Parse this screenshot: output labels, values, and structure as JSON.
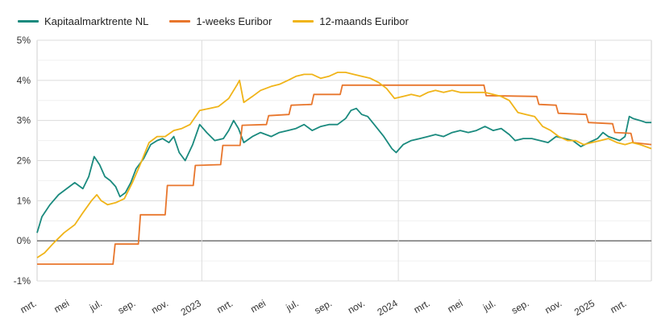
{
  "chart_data": {
    "type": "line",
    "title": "",
    "xlabel": "",
    "ylabel": "",
    "x_start": "2022-03-01",
    "x_end": "2025-04-15",
    "ylim": [
      -1,
      5
    ],
    "yticks": [
      "-1%",
      "0%",
      "1%",
      "2%",
      "3%",
      "4%",
      "5%"
    ],
    "xticks": [
      {
        "date": "2022-03-01",
        "label": "mrt."
      },
      {
        "date": "2022-05-01",
        "label": "mei"
      },
      {
        "date": "2022-07-01",
        "label": "jul."
      },
      {
        "date": "2022-09-01",
        "label": "sep."
      },
      {
        "date": "2022-11-01",
        "label": "nov."
      },
      {
        "date": "2023-01-01",
        "label": "2023"
      },
      {
        "date": "2023-03-01",
        "label": "mrt."
      },
      {
        "date": "2023-05-01",
        "label": "mei"
      },
      {
        "date": "2023-07-01",
        "label": "jul."
      },
      {
        "date": "2023-09-01",
        "label": "sep."
      },
      {
        "date": "2023-11-01",
        "label": "nov."
      },
      {
        "date": "2024-01-01",
        "label": "2024"
      },
      {
        "date": "2024-03-01",
        "label": "mrt."
      },
      {
        "date": "2024-05-01",
        "label": "mei"
      },
      {
        "date": "2024-07-01",
        "label": "jul."
      },
      {
        "date": "2024-09-01",
        "label": "sep."
      },
      {
        "date": "2024-11-01",
        "label": "nov."
      },
      {
        "date": "2025-01-01",
        "label": "2025"
      },
      {
        "date": "2025-03-01",
        "label": "mrt."
      }
    ],
    "year_lines": [
      "2023-01-01",
      "2024-01-01",
      "2025-01-01"
    ],
    "grid": true,
    "legend_position": "top-left",
    "series": [
      {
        "name": "Kapitaalmarktrente NL",
        "color": "#1a8a7e",
        "points": [
          [
            "2022-03-01",
            0.2
          ],
          [
            "2022-03-10",
            0.6
          ],
          [
            "2022-03-25",
            0.9
          ],
          [
            "2022-04-10",
            1.15
          ],
          [
            "2022-04-25",
            1.3
          ],
          [
            "2022-05-10",
            1.45
          ],
          [
            "2022-05-25",
            1.3
          ],
          [
            "2022-06-05",
            1.6
          ],
          [
            "2022-06-15",
            2.1
          ],
          [
            "2022-06-25",
            1.9
          ],
          [
            "2022-07-05",
            1.6
          ],
          [
            "2022-07-15",
            1.5
          ],
          [
            "2022-07-25",
            1.35
          ],
          [
            "2022-08-02",
            1.1
          ],
          [
            "2022-08-12",
            1.2
          ],
          [
            "2022-08-22",
            1.45
          ],
          [
            "2022-09-01",
            1.8
          ],
          [
            "2022-09-15",
            2.05
          ],
          [
            "2022-09-28",
            2.4
          ],
          [
            "2022-10-10",
            2.5
          ],
          [
            "2022-10-20",
            2.55
          ],
          [
            "2022-11-01",
            2.45
          ],
          [
            "2022-11-10",
            2.6
          ],
          [
            "2022-11-20",
            2.2
          ],
          [
            "2022-12-01",
            2.0
          ],
          [
            "2022-12-15",
            2.4
          ],
          [
            "2022-12-28",
            2.9
          ],
          [
            "2023-01-10",
            2.7
          ],
          [
            "2023-01-25",
            2.5
          ],
          [
            "2023-02-10",
            2.55
          ],
          [
            "2023-02-20",
            2.75
          ],
          [
            "2023-03-01",
            3.0
          ],
          [
            "2023-03-10",
            2.8
          ],
          [
            "2023-03-20",
            2.45
          ],
          [
            "2023-04-05",
            2.6
          ],
          [
            "2023-04-20",
            2.7
          ],
          [
            "2023-05-10",
            2.6
          ],
          [
            "2023-05-25",
            2.7
          ],
          [
            "2023-06-10",
            2.75
          ],
          [
            "2023-06-25",
            2.8
          ],
          [
            "2023-07-10",
            2.9
          ],
          [
            "2023-07-25",
            2.75
          ],
          [
            "2023-08-10",
            2.85
          ],
          [
            "2023-08-25",
            2.9
          ],
          [
            "2023-09-10",
            2.9
          ],
          [
            "2023-09-25",
            3.05
          ],
          [
            "2023-10-05",
            3.25
          ],
          [
            "2023-10-15",
            3.3
          ],
          [
            "2023-10-25",
            3.15
          ],
          [
            "2023-11-05",
            3.1
          ],
          [
            "2023-11-20",
            2.85
          ],
          [
            "2023-12-05",
            2.6
          ],
          [
            "2023-12-20",
            2.3
          ],
          [
            "2023-12-28",
            2.2
          ],
          [
            "2024-01-10",
            2.4
          ],
          [
            "2024-01-25",
            2.5
          ],
          [
            "2024-02-10",
            2.55
          ],
          [
            "2024-02-25",
            2.6
          ],
          [
            "2024-03-10",
            2.65
          ],
          [
            "2024-03-25",
            2.6
          ],
          [
            "2024-04-10",
            2.7
          ],
          [
            "2024-04-25",
            2.75
          ],
          [
            "2024-05-10",
            2.7
          ],
          [
            "2024-05-25",
            2.75
          ],
          [
            "2024-06-10",
            2.85
          ],
          [
            "2024-06-25",
            2.75
          ],
          [
            "2024-07-10",
            2.8
          ],
          [
            "2024-07-25",
            2.65
          ],
          [
            "2024-08-05",
            2.5
          ],
          [
            "2024-08-20",
            2.55
          ],
          [
            "2024-09-05",
            2.55
          ],
          [
            "2024-09-20",
            2.5
          ],
          [
            "2024-10-05",
            2.45
          ],
          [
            "2024-10-20",
            2.6
          ],
          [
            "2024-11-05",
            2.55
          ],
          [
            "2024-11-20",
            2.5
          ],
          [
            "2024-12-05",
            2.35
          ],
          [
            "2024-12-20",
            2.45
          ],
          [
            "2025-01-05",
            2.55
          ],
          [
            "2025-01-15",
            2.7
          ],
          [
            "2025-01-25",
            2.6
          ],
          [
            "2025-02-05",
            2.55
          ],
          [
            "2025-02-15",
            2.5
          ],
          [
            "2025-02-25",
            2.6
          ],
          [
            "2025-03-05",
            3.1
          ],
          [
            "2025-03-12",
            3.05
          ],
          [
            "2025-03-25",
            3.0
          ],
          [
            "2025-04-05",
            2.95
          ],
          [
            "2025-04-15",
            2.95
          ]
        ]
      },
      {
        "name": "1-weeks Euribor",
        "color": "#e8762c",
        "points": [
          [
            "2022-03-01",
            -0.58
          ],
          [
            "2022-07-20",
            -0.58
          ],
          [
            "2022-07-24",
            -0.08
          ],
          [
            "2022-09-05",
            -0.08
          ],
          [
            "2022-09-09",
            0.65
          ],
          [
            "2022-10-25",
            0.65
          ],
          [
            "2022-10-29",
            1.38
          ],
          [
            "2022-12-16",
            1.38
          ],
          [
            "2022-12-20",
            1.88
          ],
          [
            "2023-02-05",
            1.9
          ],
          [
            "2023-02-09",
            2.38
          ],
          [
            "2023-03-13",
            2.38
          ],
          [
            "2023-03-17",
            2.88
          ],
          [
            "2023-05-01",
            2.9
          ],
          [
            "2023-05-05",
            3.12
          ],
          [
            "2023-06-12",
            3.15
          ],
          [
            "2023-06-16",
            3.38
          ],
          [
            "2023-07-24",
            3.4
          ],
          [
            "2023-07-28",
            3.65
          ],
          [
            "2023-09-15",
            3.65
          ],
          [
            "2023-09-19",
            3.88
          ],
          [
            "2024-06-08",
            3.88
          ],
          [
            "2024-06-12",
            3.62
          ],
          [
            "2024-09-14",
            3.6
          ],
          [
            "2024-09-18",
            3.4
          ],
          [
            "2024-10-20",
            3.38
          ],
          [
            "2024-10-24",
            3.18
          ],
          [
            "2024-12-15",
            3.15
          ],
          [
            "2024-12-19",
            2.95
          ],
          [
            "2025-02-02",
            2.92
          ],
          [
            "2025-02-06",
            2.7
          ],
          [
            "2025-03-08",
            2.68
          ],
          [
            "2025-03-12",
            2.45
          ],
          [
            "2025-04-15",
            2.4
          ]
        ]
      },
      {
        "name": "12-maands Euribor",
        "color": "#f0b419",
        "points": [
          [
            "2022-03-01",
            -0.42
          ],
          [
            "2022-03-15",
            -0.3
          ],
          [
            "2022-04-01",
            -0.05
          ],
          [
            "2022-04-20",
            0.2
          ],
          [
            "2022-05-10",
            0.4
          ],
          [
            "2022-05-25",
            0.7
          ],
          [
            "2022-06-10",
            1.0
          ],
          [
            "2022-06-20",
            1.15
          ],
          [
            "2022-06-28",
            1.0
          ],
          [
            "2022-07-10",
            0.9
          ],
          [
            "2022-07-25",
            0.95
          ],
          [
            "2022-08-10",
            1.05
          ],
          [
            "2022-08-25",
            1.45
          ],
          [
            "2022-09-10",
            1.95
          ],
          [
            "2022-09-25",
            2.45
          ],
          [
            "2022-10-10",
            2.6
          ],
          [
            "2022-10-25",
            2.6
          ],
          [
            "2022-11-10",
            2.75
          ],
          [
            "2022-11-25",
            2.8
          ],
          [
            "2022-12-10",
            2.9
          ],
          [
            "2022-12-28",
            3.25
          ],
          [
            "2023-01-15",
            3.3
          ],
          [
            "2023-02-01",
            3.35
          ],
          [
            "2023-02-20",
            3.55
          ],
          [
            "2023-03-08",
            3.9
          ],
          [
            "2023-03-12",
            4.0
          ],
          [
            "2023-03-20",
            3.45
          ],
          [
            "2023-04-05",
            3.6
          ],
          [
            "2023-04-20",
            3.75
          ],
          [
            "2023-05-10",
            3.85
          ],
          [
            "2023-05-25",
            3.9
          ],
          [
            "2023-06-10",
            4.0
          ],
          [
            "2023-06-25",
            4.1
          ],
          [
            "2023-07-10",
            4.15
          ],
          [
            "2023-07-25",
            4.15
          ],
          [
            "2023-08-10",
            4.05
          ],
          [
            "2023-08-25",
            4.1
          ],
          [
            "2023-09-10",
            4.2
          ],
          [
            "2023-09-25",
            4.2
          ],
          [
            "2023-10-10",
            4.15
          ],
          [
            "2023-10-25",
            4.1
          ],
          [
            "2023-11-10",
            4.05
          ],
          [
            "2023-11-25",
            3.95
          ],
          [
            "2023-12-10",
            3.8
          ],
          [
            "2023-12-25",
            3.55
          ],
          [
            "2024-01-10",
            3.6
          ],
          [
            "2024-01-25",
            3.65
          ],
          [
            "2024-02-10",
            3.6
          ],
          [
            "2024-02-25",
            3.7
          ],
          [
            "2024-03-10",
            3.75
          ],
          [
            "2024-03-25",
            3.7
          ],
          [
            "2024-04-10",
            3.75
          ],
          [
            "2024-04-25",
            3.7
          ],
          [
            "2024-05-10",
            3.7
          ],
          [
            "2024-05-25",
            3.7
          ],
          [
            "2024-06-10",
            3.7
          ],
          [
            "2024-06-25",
            3.65
          ],
          [
            "2024-07-10",
            3.6
          ],
          [
            "2024-07-25",
            3.5
          ],
          [
            "2024-08-10",
            3.2
          ],
          [
            "2024-08-25",
            3.15
          ],
          [
            "2024-09-10",
            3.1
          ],
          [
            "2024-09-25",
            2.85
          ],
          [
            "2024-10-10",
            2.75
          ],
          [
            "2024-10-25",
            2.6
          ],
          [
            "2024-11-10",
            2.5
          ],
          [
            "2024-11-25",
            2.5
          ],
          [
            "2024-12-10",
            2.4
          ],
          [
            "2024-12-25",
            2.45
          ],
          [
            "2025-01-10",
            2.5
          ],
          [
            "2025-01-25",
            2.55
          ],
          [
            "2025-02-10",
            2.45
          ],
          [
            "2025-02-25",
            2.4
          ],
          [
            "2025-03-10",
            2.45
          ],
          [
            "2025-03-25",
            2.4
          ],
          [
            "2025-04-15",
            2.3
          ]
        ]
      }
    ]
  }
}
